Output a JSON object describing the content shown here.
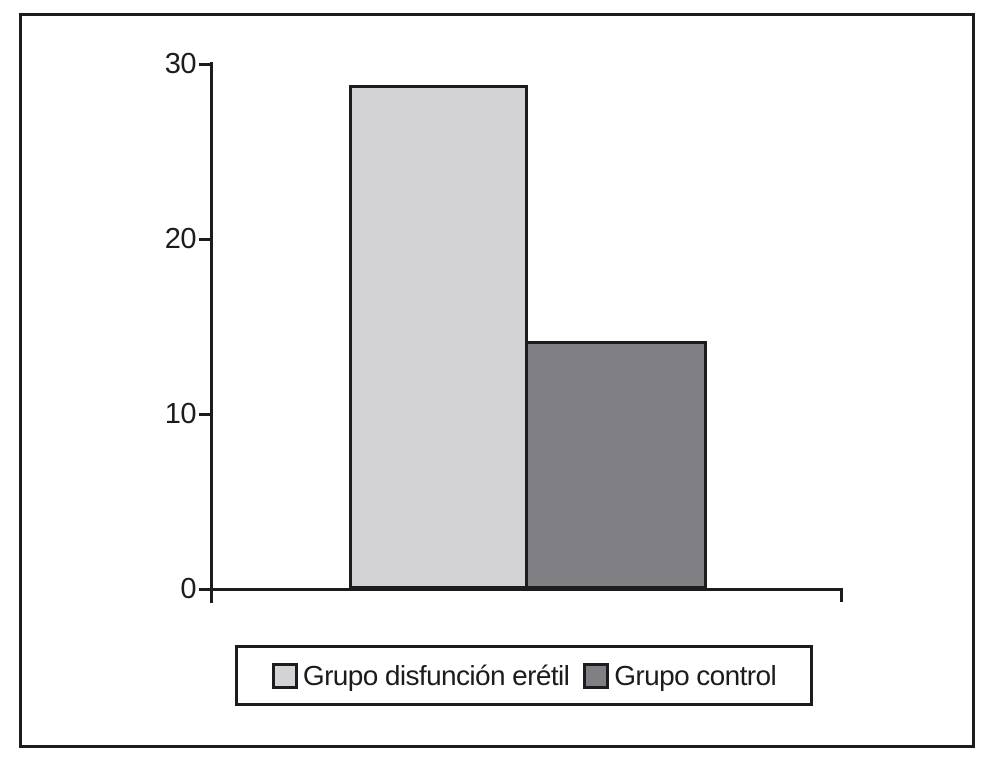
{
  "chart_data": {
    "type": "bar",
    "title": "",
    "xlabel": "",
    "ylabel": "",
    "categories": [
      "Grupo disfunción erétil",
      "Grupo control"
    ],
    "values": [
      28.8,
      14.2
    ],
    "series": [
      {
        "name": "Grupo disfunción erétil",
        "value": 28.8,
        "color": "#d3d3d5"
      },
      {
        "name": "Grupo control",
        "value": 14.2,
        "color": "#808084"
      }
    ],
    "ylim": [
      0,
      30
    ],
    "yticks": [
      0,
      10,
      20,
      30
    ],
    "ytick_labels": [
      "0",
      "10",
      "20",
      "30"
    ],
    "grid": false,
    "legend_position": "bottom-outside"
  },
  "legend": {
    "items": [
      {
        "label": "Grupo disfunción erétil",
        "swatch_color": "#d3d3d5"
      },
      {
        "label": "Grupo control",
        "swatch_color": "#808084"
      }
    ]
  },
  "colors": {
    "background": "#ffffff",
    "frame_border": "#1c1c1e",
    "axis": "#1c1c1e",
    "text": "#1c1c1e",
    "bar_light": "#d3d3d5",
    "bar_dark": "#808084"
  }
}
